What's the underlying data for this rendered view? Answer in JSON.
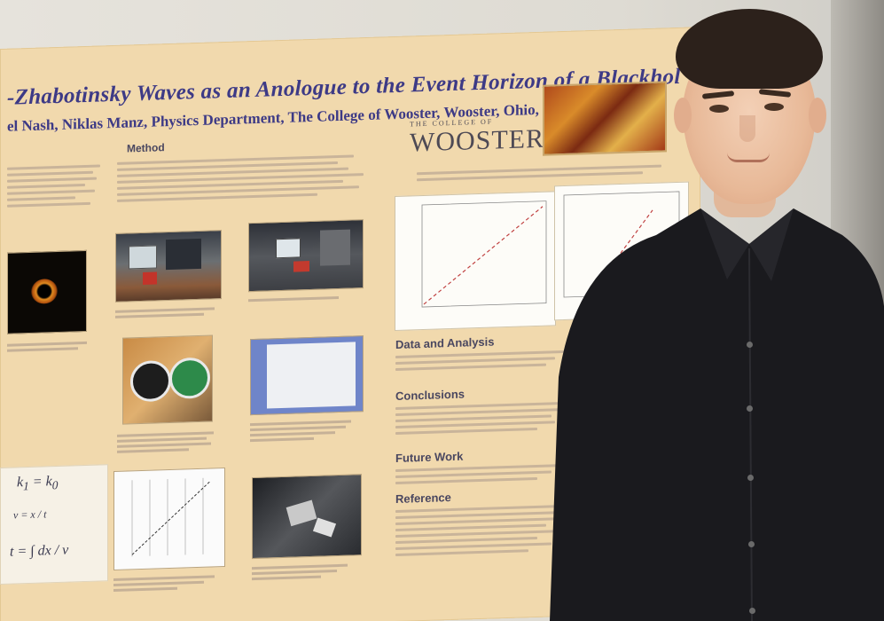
{
  "poster": {
    "title": "-Zhabotinsky Waves as an Anologue to the Event Horizon of a Blackhol",
    "authors": "el Nash, Niklas Manz, Physics Department, The College of Wooster, Wooster, Ohio, USA",
    "logo_small": "THE COLLEGE OF",
    "logo_big": "WOOSTER",
    "sections": {
      "method": "Method",
      "data_analysis": "Data and Analysis",
      "conclusions": "Conclusions",
      "future_work": "Future Work",
      "reference": "Reference"
    }
  },
  "colors": {
    "poster_bg": "#f1d9ad",
    "title_blue": "#3d3a86",
    "shirt": "#1a1a1e"
  }
}
